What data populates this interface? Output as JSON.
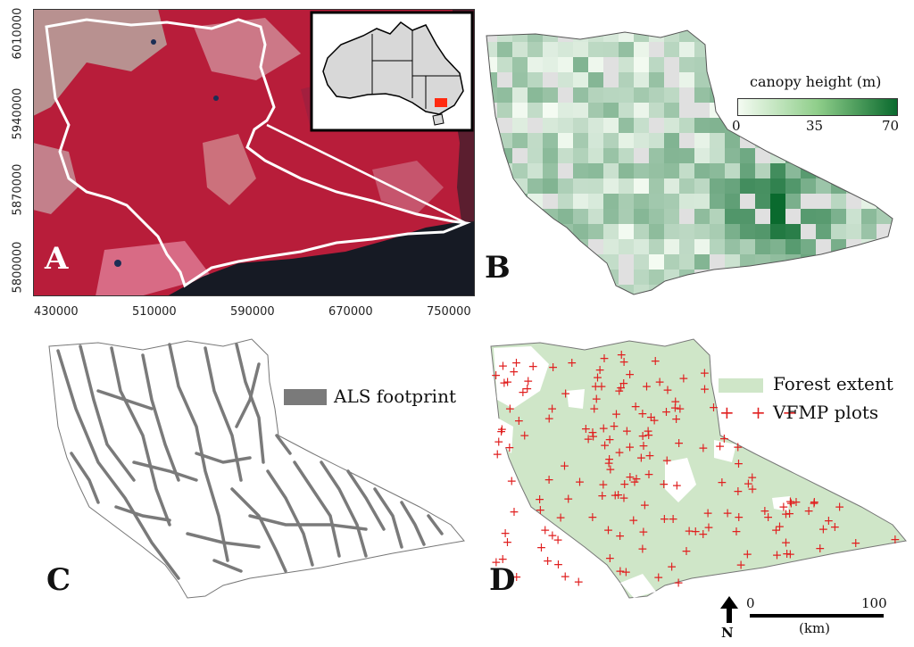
{
  "panels": {
    "a": {
      "label": "A",
      "x_ticks": [
        "430000",
        "510000",
        "590000",
        "670000",
        "750000"
      ],
      "y_ticks": [
        "6010000",
        "5940000",
        "5870000",
        "5800000"
      ]
    },
    "b": {
      "label": "B",
      "legend_title": "canopy height (m)",
      "legend_ticks": [
        "0",
        "35",
        "70"
      ],
      "colors": {
        "low": "#f2faf0",
        "high": "#0a6a2e"
      }
    },
    "c": {
      "label": "C",
      "legend_label": "ALS footprint",
      "colors": {
        "footprint": "#7a7a7a"
      }
    },
    "d": {
      "label": "D",
      "legend_forest": "Forest extent",
      "legend_plots": "VFMP plots",
      "colors": {
        "forest": "#cfe6c8",
        "plots": "#e02020"
      },
      "north": "N",
      "scale_start": "0",
      "scale_end": "100",
      "scale_unit": "(km)"
    }
  }
}
